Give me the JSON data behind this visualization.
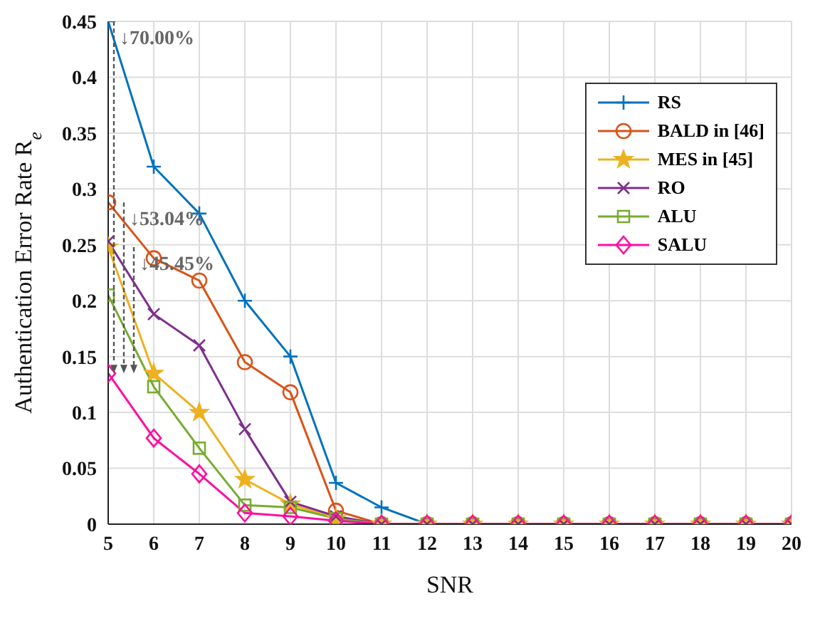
{
  "chart_data": {
    "type": "line",
    "xlabel": "SNR",
    "ylabel": "Authentication Error Rate R$_{e}$",
    "x": [
      5,
      6,
      7,
      8,
      9,
      10,
      11,
      12,
      13,
      14,
      15,
      16,
      17,
      18,
      19,
      20
    ],
    "xlim": [
      5,
      20
    ],
    "xticks": [
      5,
      6,
      7,
      8,
      9,
      10,
      11,
      12,
      13,
      14,
      15,
      16,
      17,
      18,
      19,
      20
    ],
    "ylim": [
      0,
      0.45
    ],
    "yticks": [
      0,
      0.05,
      0.1,
      0.15,
      0.2,
      0.25,
      0.3,
      0.35,
      0.4,
      0.45
    ],
    "grid": true,
    "legend": "top right",
    "line_style": "solid",
    "series": [
      {
        "name": "RS",
        "color": "#0072bd",
        "marker": "plus",
        "values": [
          0.45,
          0.32,
          0.278,
          0.2,
          0.15,
          0.037,
          0.015,
          0,
          0,
          null,
          null,
          null,
          null,
          null,
          null,
          null
        ]
      },
      {
        "name": "BALD in [46]",
        "color": "#d95319",
        "marker": "circle",
        "values": [
          0.288,
          0.238,
          0.218,
          0.145,
          0.118,
          0.012,
          0,
          0,
          0,
          0,
          0,
          0,
          0,
          0,
          0,
          0
        ]
      },
      {
        "name": "MES in [45]",
        "color": "#edb120",
        "marker": "star",
        "values": [
          0.248,
          0.135,
          0.1,
          0.04,
          0.018,
          0.005,
          0,
          0,
          0,
          0,
          0,
          0,
          0,
          0,
          0,
          0
        ]
      },
      {
        "name": "RO",
        "color": "#7e2f8e",
        "marker": "cross",
        "values": [
          0.253,
          0.188,
          0.16,
          0.085,
          0.02,
          0.007,
          0,
          0,
          0,
          0,
          0,
          0,
          0,
          0,
          0,
          0
        ]
      },
      {
        "name": "ALU",
        "color": "#77ac30",
        "marker": "square",
        "values": [
          0.205,
          0.123,
          0.068,
          0.017,
          0.015,
          0.005,
          0,
          0,
          0,
          0,
          0,
          0,
          0,
          0,
          0,
          0
        ]
      },
      {
        "name": "SALU",
        "color": "#ff0da0",
        "marker": "diamond",
        "values": [
          0.135,
          0.077,
          0.045,
          0.01,
          0.007,
          0.003,
          0,
          0,
          0,
          0,
          0,
          0,
          0,
          0,
          0,
          0
        ]
      }
    ],
    "annotations": [
      "↓70.00%",
      "↓53.04%",
      "↓45.45%"
    ]
  }
}
